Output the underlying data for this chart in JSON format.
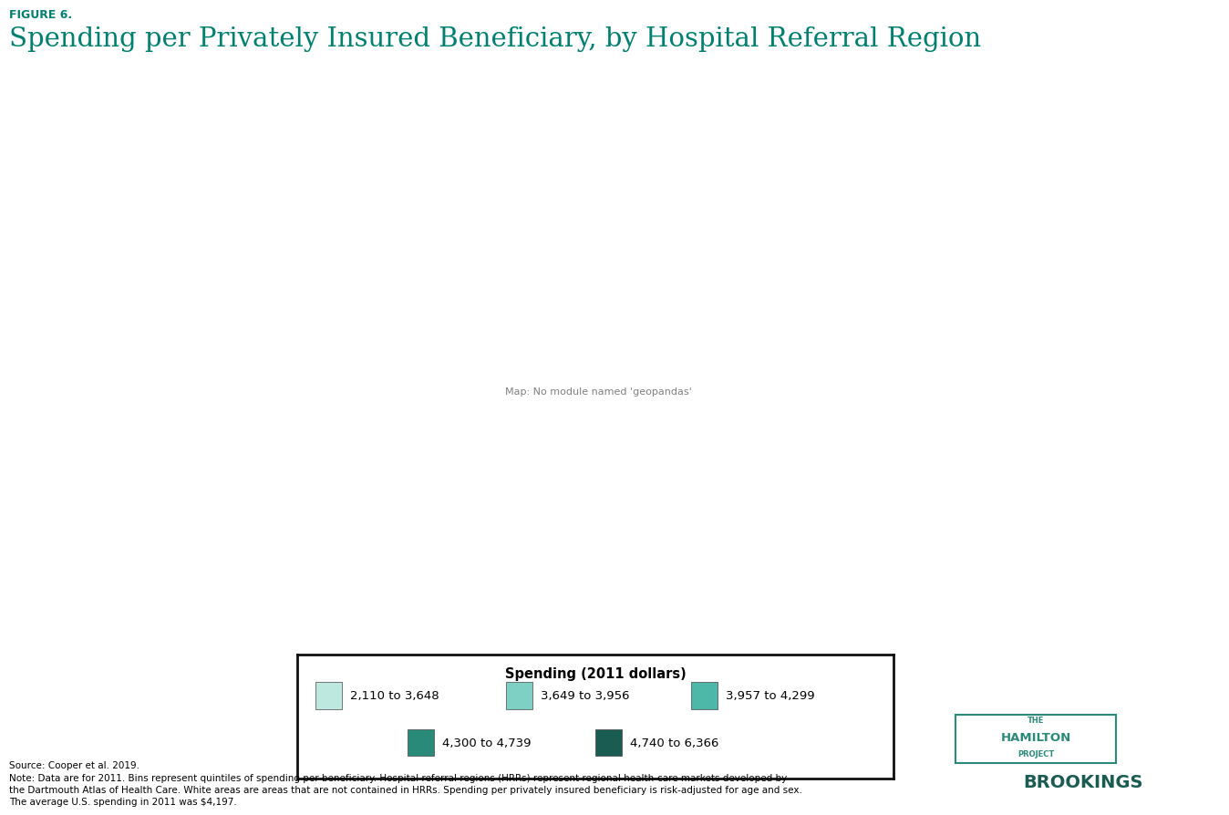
{
  "figure_label": "FIGURE 6.",
  "title": "Spending per Privately Insured Beneficiary, by Hospital Referral Region",
  "figure_label_color": "#008070",
  "title_color": "#008070",
  "legend_title": "Spending (2011 dollars)",
  "legend_entries": [
    {
      "label": "2,110 to 3,648",
      "color": "#bde8e0"
    },
    {
      "label": "3,649 to 3,956",
      "color": "#7ecfc4"
    },
    {
      "label": "3,957 to 4,299",
      "color": "#4db8a8"
    },
    {
      "label": "4,300 to 4,739",
      "color": "#2a8a7a"
    },
    {
      "label": "4,740 to 6,366",
      "color": "#1a5c52"
    }
  ],
  "source_text": "Source: Cooper et al. 2019.",
  "note_line1": "Note: Data are for 2011. Bins represent quintiles of spending per beneficiary. Hospital referral regions (HRRs) represent regional health-care markets developed by",
  "note_line2": "the Dartmouth Atlas of Health Care. White areas are areas that are not contained in HRRs. Spending per privately insured beneficiary is risk-adjusted for age and sex.",
  "note_line3": "The average U.S. spending in 2011 was $4,197.",
  "hamilton_color": "#2a8a7a",
  "brookings_color": "#1a5c52",
  "background_color": "#ffffff",
  "edge_color": "#2a2a2a",
  "state_edge_color": "#111111"
}
